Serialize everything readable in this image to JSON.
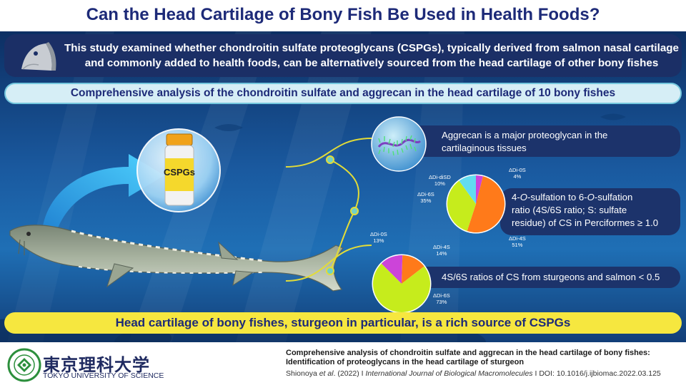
{
  "title": "Can the Head Cartilage of Bony Fish Be Used in Health Foods?",
  "intro": {
    "line1": "This study examined whether chondroitin sulfate proteoglycans (CSPGs), typically derived from salmon nasal cartilage",
    "line2": "and commonly added to health foods, can be alternatively sourced from the head cartilage of other bony fishes"
  },
  "subhead": "Comprehensive analysis of the chondroitin sulfate and aggrecan in the head cartilage of 10 bony fishes",
  "bottle_label": "CSPGs",
  "findings": {
    "aggrecan_line1": "Aggrecan is a major proteoglycan in the",
    "aggrecan_line2": "cartilaginous tissues",
    "sulfation_line1a": "4-",
    "sulfation_line1b": "O",
    "sulfation_line1c": "-sulfation to 6-",
    "sulfation_line1d": "O",
    "sulfation_line1e": "-sulfation",
    "sulfation_line2": "ratio (4S/6S ratio; S: sulfate",
    "sulfation_line3": "residue) of CS in Perciformes ≥ 1.0",
    "sturgeon": "4S/6S ratios of CS from sturgeons and salmon < 0.5"
  },
  "conclusion": "Head cartilage of bony fishes, sturgeon in particular, is a rich source of CSPGs",
  "chart_data": [
    {
      "type": "pie",
      "slices": [
        {
          "label": "ΔDi-0S",
          "value": 4,
          "pct": "4%",
          "color": "#cc44d9"
        },
        {
          "label": "ΔDi-4S",
          "value": 51,
          "pct": "51%",
          "color": "#ff7a1a"
        },
        {
          "label": "ΔDi-6S",
          "value": 35,
          "pct": "35%",
          "color": "#c6ec1c"
        },
        {
          "label": "ΔDi-diSD",
          "value": 10,
          "pct": "10%",
          "color": "#62dcf0"
        }
      ]
    },
    {
      "type": "pie",
      "slices": [
        {
          "label": "ΔDi-0S",
          "value": 13,
          "pct": "13%",
          "color": "#cc44d9"
        },
        {
          "label": "ΔDi-4S",
          "value": 14,
          "pct": "14%",
          "color": "#ff7a1a"
        },
        {
          "label": "ΔDi-6S",
          "value": 73,
          "pct": "73%",
          "color": "#c6ec1c"
        }
      ]
    }
  ],
  "footer": {
    "univ_jp": "東京理科大学",
    "univ_en": "TOKYO UNIVERSITY OF SCIENCE",
    "cite_title_1": "Comprehensive analysis of chondroitin sulfate and aggrecan in the head cartilage of bony fishes:",
    "cite_title_2": "Identification of proteoglycans in the head cartilage of sturgeon",
    "cite_authors": "Shionoya ",
    "cite_etal": "et al",
    "cite_year": ". (2022)",
    "cite_sep": " I ",
    "cite_journal": "International Journal of Biological Macromolecules",
    "cite_doi": "DOI: 10.1016/j.ijbiomac.2022.03.125",
    "logo_text": "TOKYO UNIVERSITY OF SCIENCE since 1881"
  },
  "colors": {
    "title": "#1d2a78",
    "banner": "#1b2f66",
    "conclusion_bg": "#f6e73f",
    "connector": "#e3dc37"
  }
}
